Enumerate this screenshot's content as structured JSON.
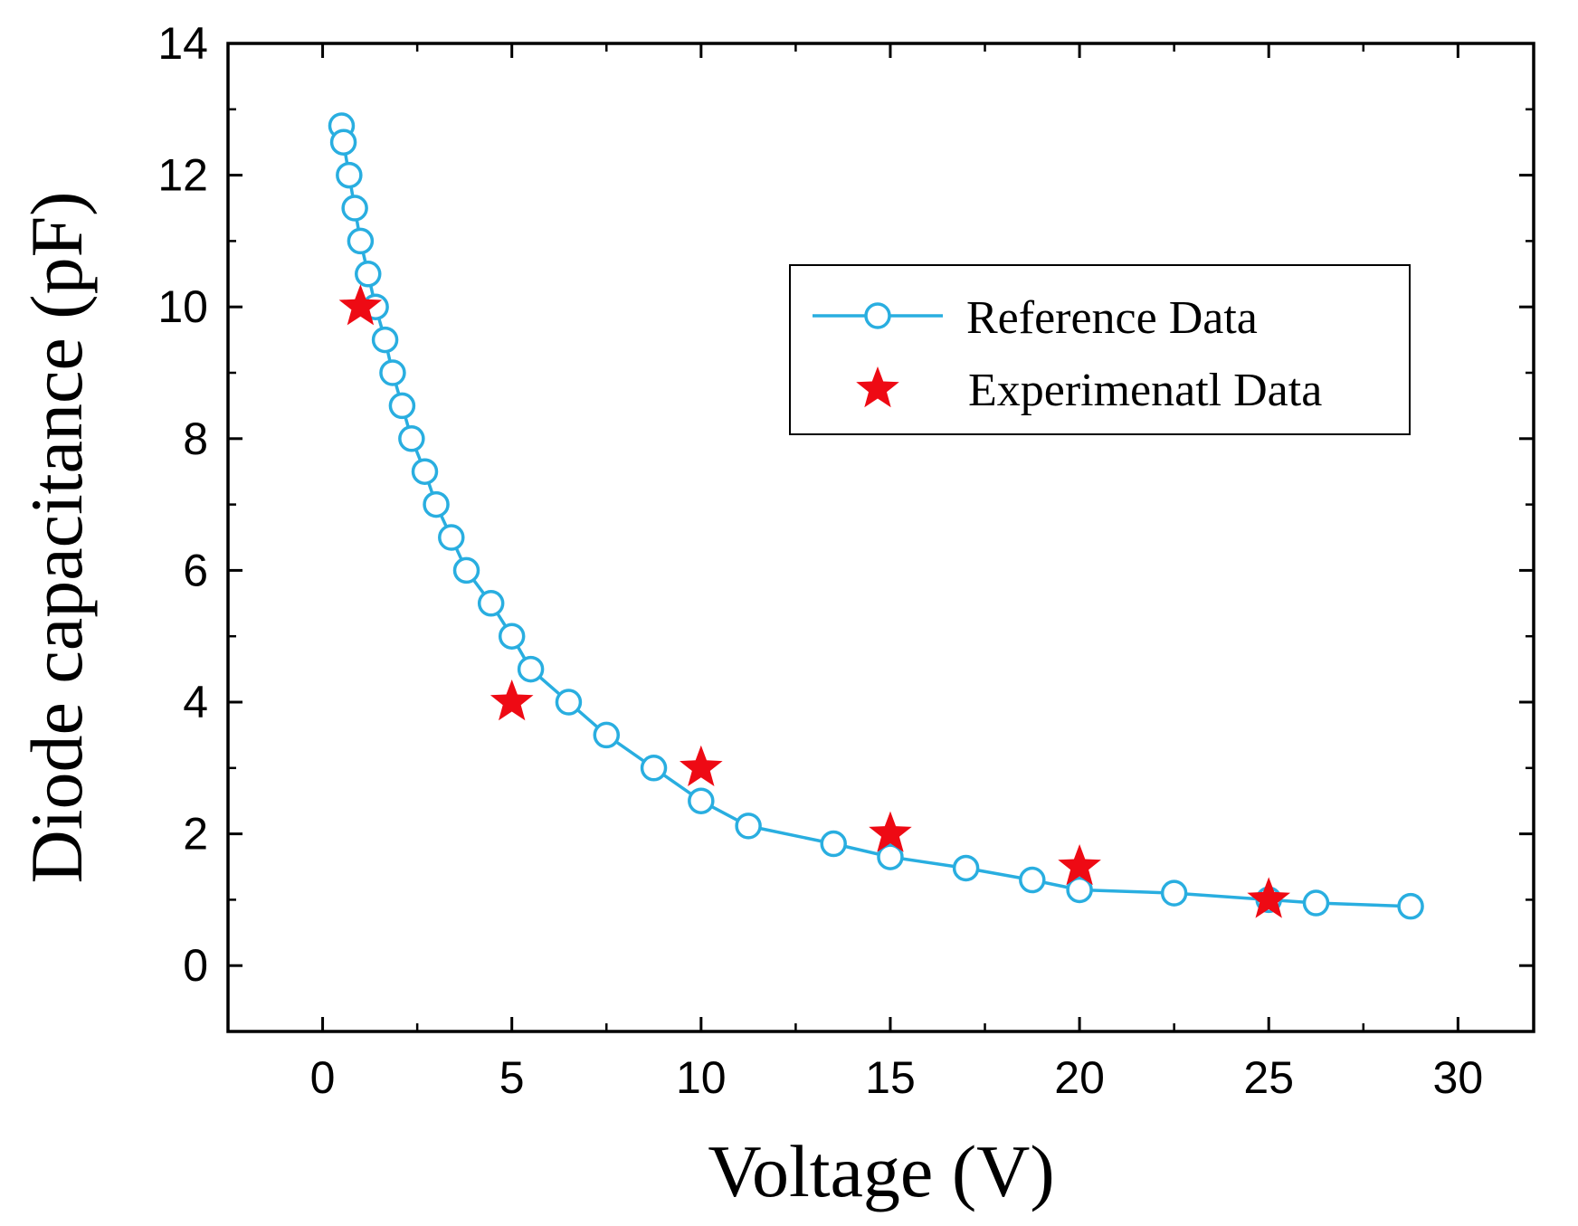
{
  "chart_data": {
    "type": "scatter",
    "xlabel": "Voltage (V)",
    "ylabel": "Diode capacitance (pF)",
    "xlim": [
      -2.5,
      32
    ],
    "ylim": [
      -1,
      14
    ],
    "xticks": [
      0,
      5,
      10,
      15,
      20,
      25,
      30
    ],
    "yticks": [
      0,
      2,
      4,
      6,
      8,
      10,
      12,
      14
    ],
    "xtick_labels": [
      "0",
      "5",
      "10",
      "15",
      "20",
      "25",
      "30"
    ],
    "ytick_labels": [
      "0",
      "2",
      "4",
      "6",
      "8",
      "10",
      "12",
      "14"
    ],
    "legend_position": "top-right",
    "series": [
      {
        "name": "Reference Data",
        "style": "line-open-circle",
        "color": "#29aee0",
        "x": [
          0.5,
          0.55,
          0.7,
          0.85,
          1.0,
          1.2,
          1.4,
          1.65,
          1.85,
          2.1,
          2.35,
          2.7,
          3.0,
          3.4,
          3.8,
          4.45,
          5.0,
          5.5,
          6.5,
          7.5,
          8.75,
          10.0,
          11.25,
          13.5,
          15.0,
          17.0,
          18.75,
          20.0,
          22.5,
          25.0,
          26.25,
          28.75
        ],
        "y": [
          12.75,
          12.5,
          12.0,
          11.5,
          11.0,
          10.5,
          10.0,
          9.5,
          9.0,
          8.5,
          8.0,
          7.5,
          7.0,
          6.5,
          6.0,
          5.5,
          5.0,
          4.5,
          4.0,
          3.5,
          3.0,
          2.5,
          2.12,
          1.85,
          1.65,
          1.48,
          1.3,
          1.15,
          1.1,
          1.0,
          0.95,
          0.9
        ]
      },
      {
        "name": "Experimenatl Data",
        "style": "star",
        "color": "#ee0a14",
        "x": [
          1,
          5,
          10,
          15,
          20,
          25
        ],
        "y": [
          10,
          4,
          3,
          2,
          1.5,
          1
        ]
      }
    ]
  }
}
